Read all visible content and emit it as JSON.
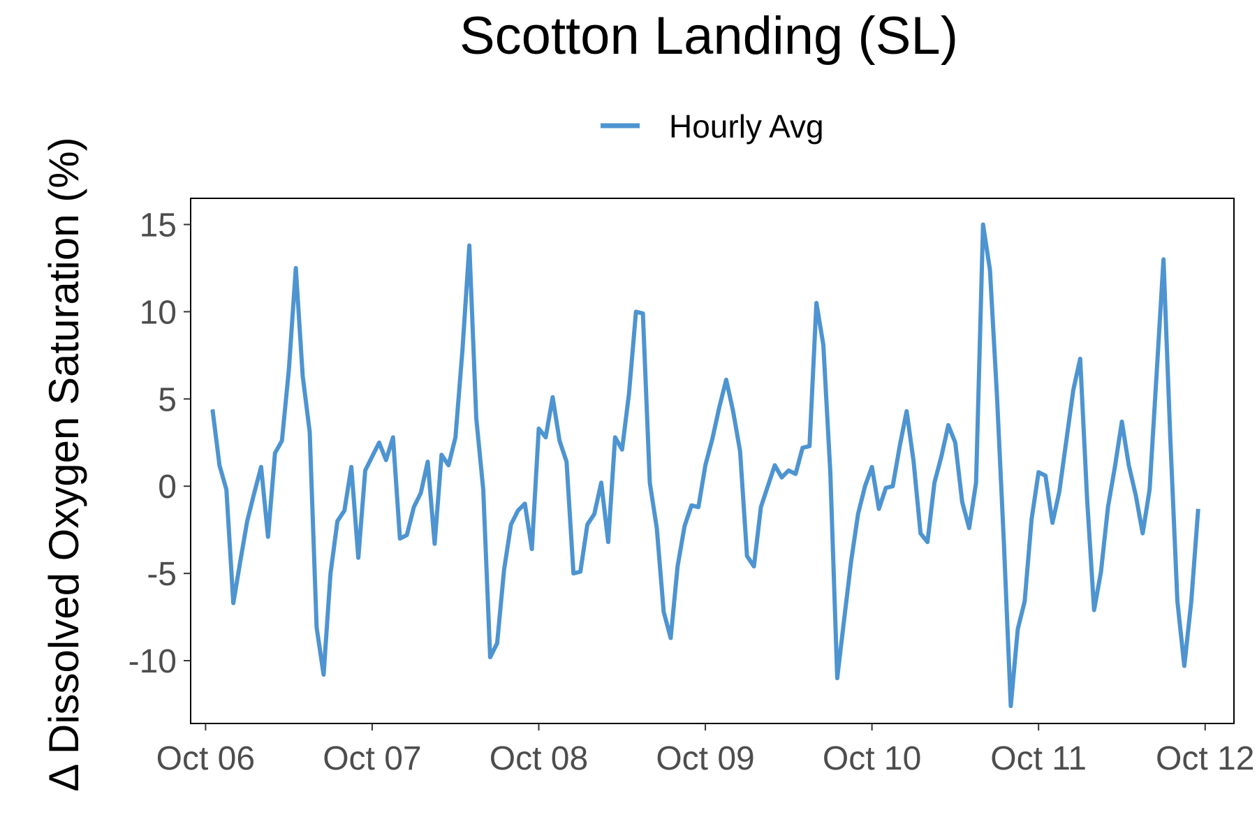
{
  "chart_data": {
    "type": "line",
    "title": "Scotton Landing (SL)",
    "xlabel": "",
    "ylabel": "Δ Dissolved Oxygen Saturation (%)",
    "legend": {
      "position": "top",
      "entries": [
        "Hourly Avg"
      ]
    },
    "grid": false,
    "x_tick_labels": [
      "Oct 06",
      "Oct 07",
      "Oct 08",
      "Oct 09",
      "Oct 10",
      "Oct 11",
      "Oct 12"
    ],
    "y_ticks": [
      -10,
      -5,
      0,
      5,
      10,
      15
    ],
    "y_tick_labels": [
      "-10",
      "-5",
      "0",
      "5",
      "10",
      "15"
    ],
    "xlim": [
      "2023-10-05T21:51",
      "2023-10-12T04:09"
    ],
    "ylim": [
      -13.6,
      16.5
    ],
    "series": [
      {
        "name": "Hourly Avg",
        "color": "#4d94d1",
        "x": [
          "2023-10-06T01:00",
          "2023-10-06T02:00",
          "2023-10-06T03:00",
          "2023-10-06T04:00",
          "2023-10-06T05:00",
          "2023-10-06T06:00",
          "2023-10-06T07:00",
          "2023-10-06T08:00",
          "2023-10-06T09:00",
          "2023-10-06T10:00",
          "2023-10-06T11:00",
          "2023-10-06T12:00",
          "2023-10-06T13:00",
          "2023-10-06T14:00",
          "2023-10-06T15:00",
          "2023-10-06T16:00",
          "2023-10-06T17:00",
          "2023-10-06T18:00",
          "2023-10-06T19:00",
          "2023-10-06T20:00",
          "2023-10-06T21:00",
          "2023-10-06T22:00",
          "2023-10-06T23:00",
          "2023-10-07T00:00",
          "2023-10-07T01:00",
          "2023-10-07T02:00",
          "2023-10-07T03:00",
          "2023-10-07T04:00",
          "2023-10-07T05:00",
          "2023-10-07T06:00",
          "2023-10-07T07:00",
          "2023-10-07T08:00",
          "2023-10-07T09:00",
          "2023-10-07T10:00",
          "2023-10-07T11:00",
          "2023-10-07T12:00",
          "2023-10-07T13:00",
          "2023-10-07T14:00",
          "2023-10-07T15:00",
          "2023-10-07T16:00",
          "2023-10-07T17:00",
          "2023-10-07T18:00",
          "2023-10-07T19:00",
          "2023-10-07T20:00",
          "2023-10-07T21:00",
          "2023-10-07T22:00",
          "2023-10-07T23:00",
          "2023-10-08T00:00",
          "2023-10-08T01:00",
          "2023-10-08T02:00",
          "2023-10-08T03:00",
          "2023-10-08T04:00",
          "2023-10-08T05:00",
          "2023-10-08T06:00",
          "2023-10-08T07:00",
          "2023-10-08T08:00",
          "2023-10-08T09:00",
          "2023-10-08T10:00",
          "2023-10-08T11:00",
          "2023-10-08T12:00",
          "2023-10-08T13:00",
          "2023-10-08T14:00",
          "2023-10-08T15:00",
          "2023-10-08T16:00",
          "2023-10-08T17:00",
          "2023-10-08T18:00",
          "2023-10-08T19:00",
          "2023-10-08T20:00",
          "2023-10-08T21:00",
          "2023-10-08T22:00",
          "2023-10-08T23:00",
          "2023-10-09T00:00",
          "2023-10-09T01:00",
          "2023-10-09T02:00",
          "2023-10-09T03:00",
          "2023-10-09T04:00",
          "2023-10-09T05:00",
          "2023-10-09T06:00",
          "2023-10-09T07:00",
          "2023-10-09T08:00",
          "2023-10-09T09:00",
          "2023-10-09T10:00",
          "2023-10-09T11:00",
          "2023-10-09T12:00",
          "2023-10-09T13:00",
          "2023-10-09T14:00",
          "2023-10-09T15:00",
          "2023-10-09T16:00",
          "2023-10-09T17:00",
          "2023-10-09T18:00",
          "2023-10-09T19:00",
          "2023-10-09T20:00",
          "2023-10-09T21:00",
          "2023-10-09T22:00",
          "2023-10-09T23:00",
          "2023-10-10T00:00",
          "2023-10-10T01:00",
          "2023-10-10T02:00",
          "2023-10-10T03:00",
          "2023-10-10T04:00",
          "2023-10-10T05:00",
          "2023-10-10T06:00",
          "2023-10-10T07:00",
          "2023-10-10T08:00",
          "2023-10-10T09:00",
          "2023-10-10T10:00",
          "2023-10-10T11:00",
          "2023-10-10T12:00",
          "2023-10-10T13:00",
          "2023-10-10T14:00",
          "2023-10-10T15:00",
          "2023-10-10T16:00",
          "2023-10-10T17:00",
          "2023-10-10T18:00",
          "2023-10-10T19:00",
          "2023-10-10T20:00",
          "2023-10-10T21:00",
          "2023-10-10T22:00",
          "2023-10-10T23:00",
          "2023-10-11T00:00",
          "2023-10-11T01:00",
          "2023-10-11T02:00",
          "2023-10-11T03:00",
          "2023-10-11T04:00",
          "2023-10-11T05:00",
          "2023-10-11T06:00",
          "2023-10-11T07:00",
          "2023-10-11T08:00",
          "2023-10-11T09:00",
          "2023-10-11T10:00",
          "2023-10-11T11:00",
          "2023-10-11T12:00",
          "2023-10-11T13:00",
          "2023-10-11T14:00",
          "2023-10-11T15:00",
          "2023-10-11T16:00",
          "2023-10-11T17:00",
          "2023-10-11T18:00",
          "2023-10-11T19:00",
          "2023-10-11T20:00",
          "2023-10-11T21:00",
          "2023-10-11T22:00",
          "2023-10-11T23:00"
        ],
        "y": [
          4.4,
          1.2,
          -0.2,
          -6.7,
          -4.3,
          -2.0,
          -0.4,
          1.1,
          -2.9,
          1.9,
          2.6,
          6.7,
          12.5,
          6.3,
          3.1,
          -8.1,
          -10.8,
          -5.0,
          -2.0,
          -1.4,
          1.1,
          -4.1,
          0.9,
          1.7,
          2.5,
          1.5,
          2.8,
          -3.0,
          -2.8,
          -1.2,
          -0.4,
          1.4,
          -3.3,
          1.8,
          1.2,
          2.8,
          7.8,
          13.8,
          3.9,
          -0.2,
          -9.8,
          -9.0,
          -4.8,
          -2.2,
          -1.4,
          -1.0,
          -3.6,
          3.3,
          2.8,
          5.1,
          2.6,
          1.4,
          -5.0,
          -4.9,
          -2.2,
          -1.6,
          0.2,
          -3.2,
          2.8,
          2.1,
          5.3,
          10.0,
          9.9,
          0.2,
          -2.4,
          -7.2,
          -8.7,
          -4.6,
          -2.3,
          -1.1,
          -1.2,
          1.2,
          2.7,
          4.5,
          6.1,
          4.3,
          2.0,
          -4.0,
          -4.6,
          -1.2,
          0.0,
          1.2,
          0.5,
          0.9,
          0.7,
          2.2,
          2.3,
          10.5,
          8.1,
          0.8,
          -11.0,
          -7.6,
          -4.3,
          -1.6,
          0.0,
          1.1,
          -1.3,
          -0.1,
          0.0,
          2.3,
          4.3,
          1.4,
          -2.7,
          -3.2,
          0.2,
          1.7,
          3.5,
          2.5,
          -0.9,
          -2.4,
          0.2,
          15.0,
          12.4,
          5.3,
          -3.2,
          -12.6,
          -8.2,
          -6.6,
          -1.9,
          0.8,
          0.6,
          -2.1,
          -0.3,
          2.6,
          5.5,
          7.3,
          -0.8,
          -7.1,
          -4.9,
          -1.2,
          1.1,
          3.7,
          1.2,
          -0.5,
          -2.7,
          -0.2,
          6.4,
          13.0,
          2.6,
          -6.6,
          -10.3,
          -6.6,
          -1.3
        ]
      }
    ]
  }
}
